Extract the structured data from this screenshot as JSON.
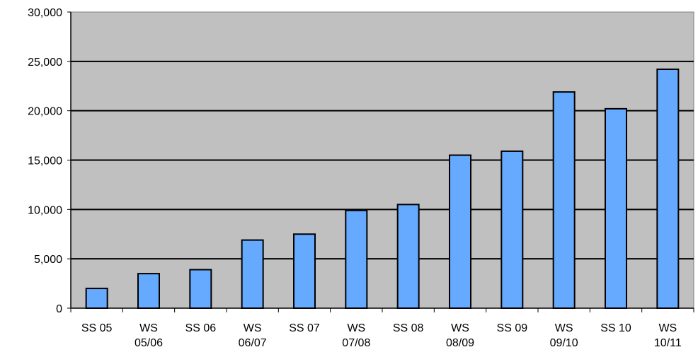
{
  "chart_data": {
    "type": "bar",
    "title": "",
    "xlabel": "",
    "ylabel": "",
    "categories": [
      [
        "SS 05"
      ],
      [
        "WS",
        "05/06"
      ],
      [
        "SS 06"
      ],
      [
        "WS",
        "06/07"
      ],
      [
        "SS 07"
      ],
      [
        "WS",
        "07/08"
      ],
      [
        "SS 08"
      ],
      [
        "WS",
        "08/09"
      ],
      [
        "SS 09"
      ],
      [
        "WS",
        "09/10"
      ],
      [
        "SS 10"
      ],
      [
        "WS",
        "10/11"
      ]
    ],
    "values": [
      2000,
      3500,
      3900,
      6900,
      7500,
      9900,
      10500,
      15500,
      15900,
      21900,
      20200,
      24200
    ],
    "ylim": [
      0,
      30000
    ],
    "yticks": [
      "0",
      "5,000",
      "10,000",
      "15,000",
      "20,000",
      "25,000",
      "30,000"
    ],
    "grid": true,
    "legend": "none",
    "colors": {
      "plot_background": "#c0c0c0",
      "bar_fill": "#66aaff",
      "bar_stroke": "#000000",
      "gridline": "#000000"
    }
  }
}
